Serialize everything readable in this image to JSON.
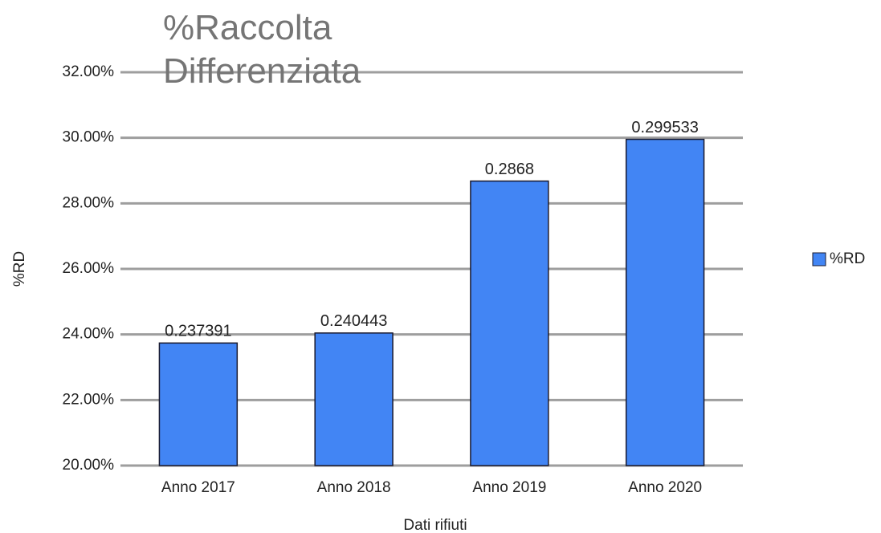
{
  "chart_data": {
    "type": "bar",
    "title": "%Raccolta Differenziata",
    "x_label": "Dati rifiuti",
    "y_label": "%RD",
    "categories": [
      "Anno 2017",
      "Anno 2018",
      "Anno 2019",
      "Anno 2020"
    ],
    "series": [
      {
        "name": "%RD",
        "color": "#4285f4",
        "values": [
          23.7391,
          24.0443,
          28.68,
          29.9533
        ],
        "value_labels": [
          "0.237391",
          "0.240443",
          "0.2868",
          "0.299533"
        ]
      }
    ],
    "ylim": [
      20,
      32
    ],
    "yticks": [
      {
        "value": 20,
        "label": "20.00%"
      },
      {
        "value": 22,
        "label": "22.00%"
      },
      {
        "value": 24,
        "label": "24.00%"
      },
      {
        "value": 26,
        "label": "26.00%"
      },
      {
        "value": 28,
        "label": "28.00%"
      },
      {
        "value": 30,
        "label": "30.00%"
      },
      {
        "value": 32,
        "label": "32.00%"
      }
    ],
    "grid": true,
    "legend": "right"
  }
}
